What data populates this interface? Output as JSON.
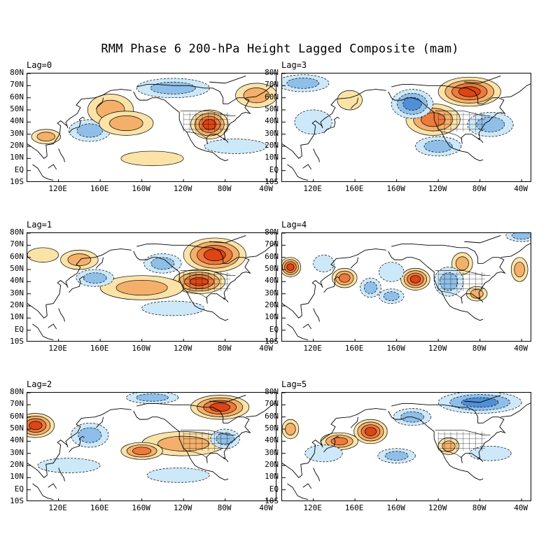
{
  "title": "RMM Phase 6 200-hPa Height Lagged Composite (mam)",
  "lat_labels": [
    "80N",
    "70N",
    "60N",
    "50N",
    "40N",
    "30N",
    "20N",
    "10N",
    "EQ",
    "10S"
  ],
  "lon_labels": [
    "120E",
    "160E",
    "160W",
    "120W",
    "80W",
    "40W"
  ],
  "colors": {
    "neg3": "#4f8fd6",
    "neg2": "#8fbfe8",
    "neg1": "#cde8f8",
    "pos1": "#fbe3a8",
    "pos2": "#f4b06b",
    "pos3": "#ec7a3c",
    "pos4": "#dd4514",
    "coast": "#000000"
  },
  "panels": [
    {
      "lag": "Lag=0",
      "anomalies": [
        {
          "lon": 108,
          "lat": 28,
          "rx": 14,
          "ry": 6,
          "level": 2
        },
        {
          "lon": 150,
          "lat": 33,
          "rx": 20,
          "ry": 9,
          "level": -2
        },
        {
          "lon": 170,
          "lat": 50,
          "rx": 22,
          "ry": 13,
          "level": 2
        },
        {
          "lon": 185,
          "lat": 39,
          "rx": 26,
          "ry": 10,
          "level": 2
        },
        {
          "lon": 265,
          "lat": 38,
          "rx": 18,
          "ry": 12,
          "level": 4
        },
        {
          "lon": 230,
          "lat": 68,
          "rx": 35,
          "ry": 8,
          "level": -2
        },
        {
          "lon": 310,
          "lat": 62,
          "rx": 20,
          "ry": 10,
          "level": 2
        },
        {
          "lon": 290,
          "lat": 20,
          "rx": 30,
          "ry": 6,
          "level": -1
        },
        {
          "lon": 210,
          "lat": 10,
          "rx": 30,
          "ry": 6,
          "level": 1
        }
      ]
    },
    {
      "lag": "Lag=3",
      "anomalies": [
        {
          "lon": 270,
          "lat": 65,
          "rx": 30,
          "ry": 12,
          "level": 4
        },
        {
          "lon": 235,
          "lat": 42,
          "rx": 26,
          "ry": 13,
          "level": 3
        },
        {
          "lon": 215,
          "lat": 55,
          "rx": 20,
          "ry": 12,
          "level": -3
        },
        {
          "lon": 290,
          "lat": 38,
          "rx": 22,
          "ry": 10,
          "level": -2
        },
        {
          "lon": 110,
          "lat": 72,
          "rx": 25,
          "ry": 7,
          "level": -2
        },
        {
          "lon": 155,
          "lat": 58,
          "rx": 12,
          "ry": 8,
          "level": 1
        },
        {
          "lon": 240,
          "lat": 20,
          "rx": 22,
          "ry": 8,
          "level": -2
        },
        {
          "lon": 120,
          "lat": 40,
          "rx": 18,
          "ry": 10,
          "level": -1
        }
      ]
    },
    {
      "lag": "Lag=1",
      "anomalies": [
        {
          "lon": 270,
          "lat": 62,
          "rx": 30,
          "ry": 14,
          "level": 4
        },
        {
          "lon": 255,
          "lat": 40,
          "rx": 25,
          "ry": 10,
          "level": 4
        },
        {
          "lon": 200,
          "lat": 35,
          "rx": 40,
          "ry": 10,
          "level": 2
        },
        {
          "lon": 140,
          "lat": 58,
          "rx": 18,
          "ry": 8,
          "level": 2
        },
        {
          "lon": 155,
          "lat": 43,
          "rx": 18,
          "ry": 7,
          "level": -2
        },
        {
          "lon": 220,
          "lat": 55,
          "rx": 18,
          "ry": 8,
          "level": -2
        },
        {
          "lon": 105,
          "lat": 62,
          "rx": 15,
          "ry": 6,
          "level": 1
        },
        {
          "lon": 230,
          "lat": 18,
          "rx": 30,
          "ry": 6,
          "level": -1
        }
      ]
    },
    {
      "lag": "Lag=4",
      "anomalies": [
        {
          "lon": 98,
          "lat": 52,
          "rx": 10,
          "ry": 8,
          "level": 4
        },
        {
          "lon": 150,
          "lat": 43,
          "rx": 12,
          "ry": 8,
          "level": 3
        },
        {
          "lon": 218,
          "lat": 42,
          "rx": 14,
          "ry": 9,
          "level": 4
        },
        {
          "lon": 175,
          "lat": 35,
          "rx": 10,
          "ry": 8,
          "level": -2
        },
        {
          "lon": 130,
          "lat": 55,
          "rx": 10,
          "ry": 7,
          "level": -1
        },
        {
          "lon": 195,
          "lat": 48,
          "rx": 12,
          "ry": 8,
          "level": -1
        },
        {
          "lon": 263,
          "lat": 55,
          "rx": 10,
          "ry": 9,
          "level": 2
        },
        {
          "lon": 250,
          "lat": 40,
          "rx": 14,
          "ry": 12,
          "level": -2
        },
        {
          "lon": 277,
          "lat": 30,
          "rx": 10,
          "ry": 6,
          "level": 2
        },
        {
          "lon": 318,
          "lat": 50,
          "rx": 8,
          "ry": 10,
          "level": 2
        },
        {
          "lon": 195,
          "lat": 28,
          "rx": 12,
          "ry": 6,
          "level": -2
        },
        {
          "lon": 320,
          "lat": 78,
          "rx": 15,
          "ry": 5,
          "level": -2
        }
      ]
    },
    {
      "lag": "Lag=2",
      "anomalies": [
        {
          "lon": 98,
          "lat": 53,
          "rx": 18,
          "ry": 10,
          "level": 4
        },
        {
          "lon": 275,
          "lat": 68,
          "rx": 28,
          "ry": 10,
          "level": 4
        },
        {
          "lon": 240,
          "lat": 38,
          "rx": 40,
          "ry": 10,
          "level": 2
        },
        {
          "lon": 200,
          "lat": 32,
          "rx": 20,
          "ry": 7,
          "level": 3
        },
        {
          "lon": 150,
          "lat": 45,
          "rx": 18,
          "ry": 10,
          "level": -2
        },
        {
          "lon": 210,
          "lat": 76,
          "rx": 25,
          "ry": 5,
          "level": -2
        },
        {
          "lon": 280,
          "lat": 42,
          "rx": 14,
          "ry": 8,
          "level": -2
        },
        {
          "lon": 130,
          "lat": 20,
          "rx": 30,
          "ry": 6,
          "level": -1
        },
        {
          "lon": 235,
          "lat": 12,
          "rx": 30,
          "ry": 6,
          "level": -1
        }
      ]
    },
    {
      "lag": "Lag=5",
      "anomalies": [
        {
          "lon": 175,
          "lat": 48,
          "rx": 16,
          "ry": 10,
          "level": 4
        },
        {
          "lon": 145,
          "lat": 40,
          "rx": 18,
          "ry": 7,
          "level": 3
        },
        {
          "lon": 98,
          "lat": 50,
          "rx": 8,
          "ry": 8,
          "level": 2
        },
        {
          "lon": 280,
          "lat": 72,
          "rx": 40,
          "ry": 9,
          "level": -3
        },
        {
          "lon": 215,
          "lat": 60,
          "rx": 18,
          "ry": 7,
          "level": -2
        },
        {
          "lon": 130,
          "lat": 30,
          "rx": 18,
          "ry": 7,
          "level": -1
        },
        {
          "lon": 250,
          "lat": 36,
          "rx": 10,
          "ry": 7,
          "level": 2
        },
        {
          "lon": 200,
          "lat": 28,
          "rx": 18,
          "ry": 6,
          "level": -2
        },
        {
          "lon": 290,
          "lat": 30,
          "rx": 20,
          "ry": 6,
          "level": -1
        }
      ]
    }
  ]
}
